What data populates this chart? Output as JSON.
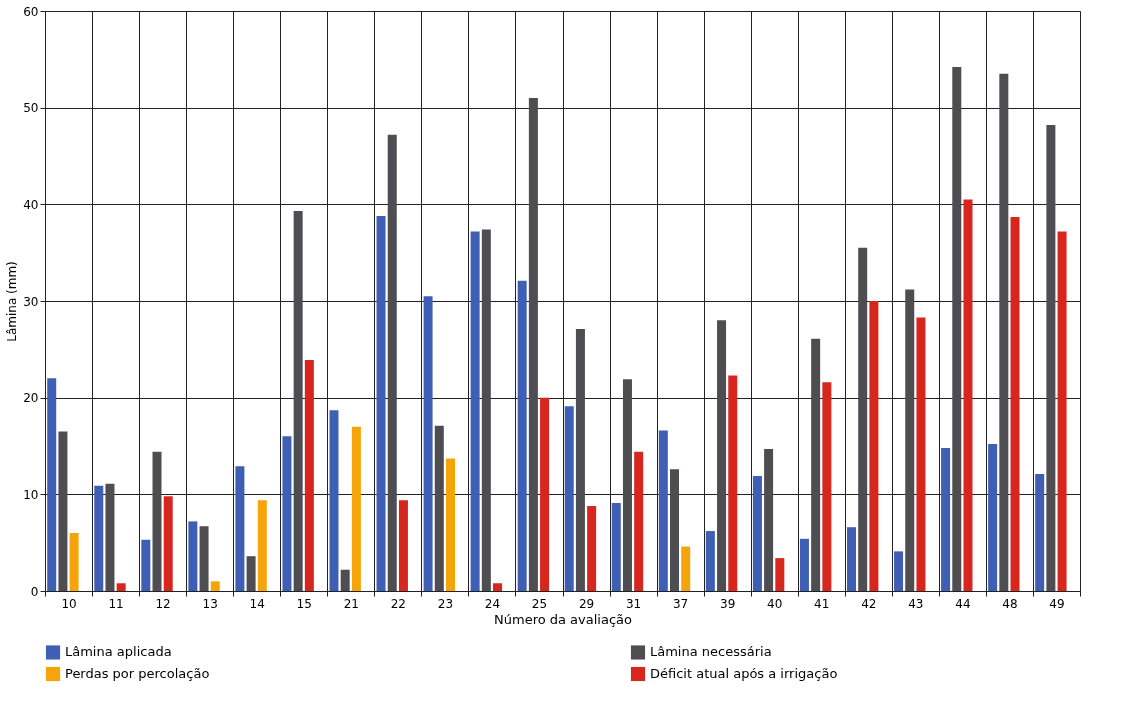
{
  "chart_data": {
    "type": "bar",
    "xlabel": "Número da avaliação",
    "ylabel": "Lâmina (mm)",
    "categories": [
      "10",
      "11",
      "12",
      "13",
      "14",
      "15",
      "21",
      "22",
      "23",
      "24",
      "25",
      "29",
      "31",
      "37",
      "39",
      "40",
      "41",
      "42",
      "43",
      "44",
      "48",
      "49"
    ],
    "series": [
      {
        "name": "Lâmina aplicada",
        "color": "#3f5fb5",
        "values": [
          22,
          10.9,
          5.3,
          7.2,
          12.9,
          16,
          18.7,
          38.8,
          30.5,
          37.2,
          32.1,
          19.1,
          9.1,
          16.6,
          6.2,
          11.9,
          5.4,
          6.6,
          4.1,
          14.8,
          15.2,
          12.1
        ]
      },
      {
        "name": "Lâmina necessária",
        "color": "#4d4d52",
        "values": [
          16.5,
          11.1,
          14.4,
          6.7,
          3.6,
          39.3,
          2.2,
          47.2,
          17.1,
          37.4,
          51,
          27.1,
          21.9,
          12.6,
          28,
          14.7,
          26.1,
          35.5,
          31.2,
          54.2,
          53.5,
          48.2
        ]
      },
      {
        "name": "Perdas por percolação",
        "color": "#f5a50a",
        "values": [
          6,
          null,
          null,
          1,
          9.4,
          null,
          17,
          null,
          13.7,
          null,
          null,
          null,
          null,
          4.6,
          null,
          null,
          null,
          null,
          null,
          null,
          null,
          null
        ]
      },
      {
        "name": "Déficit atual após a irrigação",
        "color": "#d7261e",
        "values": [
          null,
          0.8,
          9.8,
          null,
          null,
          23.9,
          null,
          9.4,
          null,
          0.8,
          20,
          8.8,
          14.4,
          null,
          22.3,
          3.4,
          21.6,
          30,
          28.3,
          40.5,
          38.7,
          37.2
        ]
      }
    ],
    "ylim": [
      0,
      60
    ],
    "yticks": [
      0,
      10,
      20,
      30,
      40,
      50,
      60
    ],
    "grid": true,
    "legend": "bottom"
  }
}
